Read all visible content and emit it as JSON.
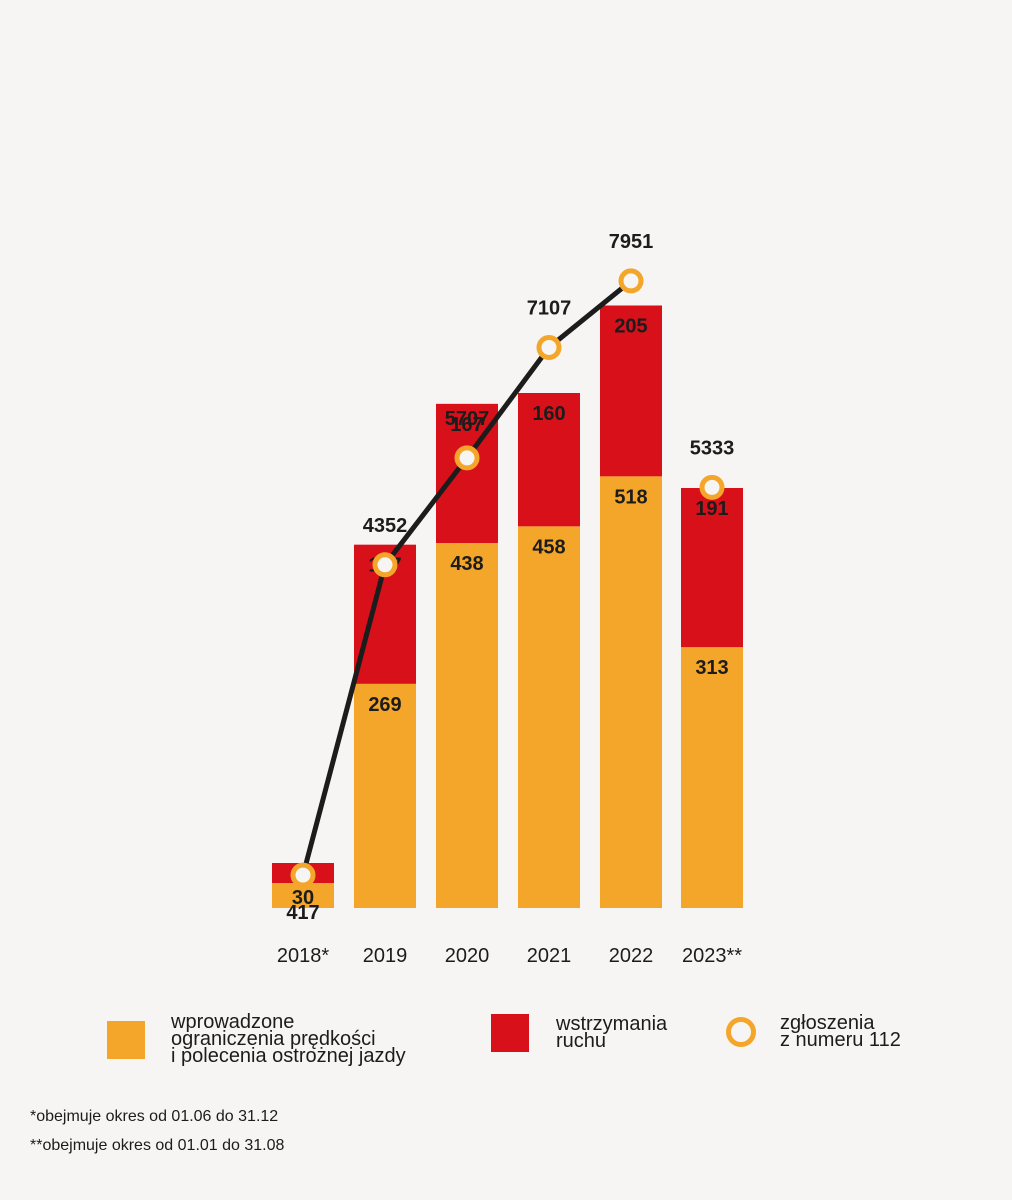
{
  "chart_data": {
    "type": "bar",
    "stacked": true,
    "categories": [
      "2018*",
      "2019",
      "2020",
      "2021",
      "2022",
      "2023**"
    ],
    "series": [
      {
        "name": "wprowadzone ograniczenia prędkości i polecenia ostrożnej jazdy",
        "values": [
          30,
          269,
          438,
          458,
          518,
          313
        ],
        "color": "#f4a62a"
      },
      {
        "name": "wstrzymania ruchu",
        "values": [
          24,
          167,
          167,
          160,
          205,
          191
        ],
        "color": "#d7101a"
      }
    ],
    "line_series": {
      "name": "zgłoszenia z numeru 112",
      "values": [
        417,
        4352,
        5707,
        7107,
        7951,
        5333
      ],
      "connected_until": 4,
      "color": "#f4a62a",
      "line_color": "#1c1c1c"
    },
    "bar_ylim": [
      0,
      750
    ],
    "line_ylim": [
      0,
      11500
    ],
    "grid": false,
    "legend_position": "bottom"
  },
  "legend": [
    {
      "label": "wprowadzone\nograniczenia prędkości\ni polecenia ostrożnej jazdy"
    },
    {
      "label": "wstrzymania\nruchu"
    },
    {
      "label": "zgłoszenia\nz numeru 112"
    }
  ],
  "notes": {
    "note1": "*obejmuje okres od 01.06 do 31.12",
    "note2": "**obejmuje okres od 01.01 do 31.08"
  }
}
